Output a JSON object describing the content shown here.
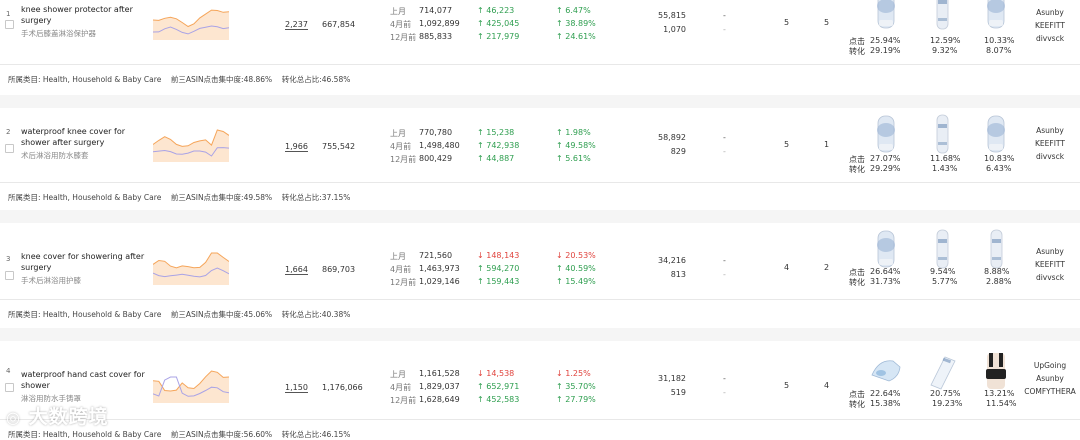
{
  "rows": [
    {
      "index": "1",
      "keyword": "knee shower protector after surgery",
      "keyword_cn": "手术后膝盖淋浴保护器",
      "rank": "2,237",
      "search_volume": "667,854",
      "periods": [
        {
          "label": "上月",
          "value": "714,077",
          "change": "46,223",
          "change_dir": "up",
          "pct": "6.47%",
          "pct_dir": "up"
        },
        {
          "label": "4月前",
          "value": "1,092,899",
          "change": "425,045",
          "change_dir": "up",
          "pct": "38.89%",
          "pct_dir": "up"
        },
        {
          "label": "12月前",
          "value": "885,833",
          "change": "217,979",
          "change_dir": "up",
          "pct": "24.61%",
          "pct_dir": "up"
        }
      ],
      "metric_a": "55,815",
      "metric_b": "1,070",
      "dash_a": "-",
      "dash_b": "-",
      "num_a": "5",
      "num_b": "5",
      "click_label": "点击",
      "conv_label": "转化",
      "products": [
        {
          "icon": "knee-cover-product-icon",
          "click": "25.94%",
          "conv": "29.19%"
        },
        {
          "icon": "leg-cover-product-icon",
          "click": "12.59%",
          "conv": "9.32%"
        },
        {
          "icon": "knee-cover-product-icon",
          "click": "10.33%",
          "conv": "8.07%"
        }
      ],
      "brands": [
        "Asunby",
        "KEEFITT",
        "divvsck"
      ],
      "summary": "所属类目: Health, Household & Baby Care    前三ASIN点击集中度:48.86%    转化总占比:46.58%"
    },
    {
      "index": "2",
      "keyword": "waterproof knee cover for shower after surgery",
      "keyword_cn": "术后淋浴用防水膝套",
      "rank": "1,966",
      "search_volume": "755,542",
      "periods": [
        {
          "label": "上月",
          "value": "770,780",
          "change": "15,238",
          "change_dir": "up",
          "pct": "1.98%",
          "pct_dir": "up"
        },
        {
          "label": "4月前",
          "value": "1,498,480",
          "change": "742,938",
          "change_dir": "up",
          "pct": "49.58%",
          "pct_dir": "up"
        },
        {
          "label": "12月前",
          "value": "800,429",
          "change": "44,887",
          "change_dir": "up",
          "pct": "5.61%",
          "pct_dir": "up"
        }
      ],
      "metric_a": "58,892",
      "metric_b": "829",
      "dash_a": "-",
      "dash_b": "-",
      "num_a": "5",
      "num_b": "1",
      "click_label": "点击",
      "conv_label": "转化",
      "products": [
        {
          "icon": "knee-cover-product-icon",
          "click": "27.07%",
          "conv": "29.29%"
        },
        {
          "icon": "leg-cover-product-icon",
          "click": "11.68%",
          "conv": "1.43%"
        },
        {
          "icon": "knee-cover-product-icon",
          "click": "10.83%",
          "conv": "6.43%"
        }
      ],
      "brands": [
        "Asunby",
        "KEEFITT",
        "divvsck"
      ],
      "summary": "所属类目: Health, Household & Baby Care    前三ASIN点击集中度:49.58%    转化总占比:37.15%"
    },
    {
      "index": "3",
      "keyword": "knee cover for showering after surgery",
      "keyword_cn": "手术后淋浴用护膝",
      "rank": "1,664",
      "search_volume": "869,703",
      "periods": [
        {
          "label": "上月",
          "value": "721,560",
          "change": "148,143",
          "change_dir": "down",
          "pct": "20.53%",
          "pct_dir": "down"
        },
        {
          "label": "4月前",
          "value": "1,463,973",
          "change": "594,270",
          "change_dir": "up",
          "pct": "40.59%",
          "pct_dir": "up"
        },
        {
          "label": "12月前",
          "value": "1,029,146",
          "change": "159,443",
          "change_dir": "up",
          "pct": "15.49%",
          "pct_dir": "up"
        }
      ],
      "metric_a": "34,216",
      "metric_b": "813",
      "dash_a": "-",
      "dash_b": "-",
      "num_a": "4",
      "num_b": "2",
      "click_label": "点击",
      "conv_label": "转化",
      "products": [
        {
          "icon": "knee-cover-product-icon",
          "click": "26.64%",
          "conv": "31.73%"
        },
        {
          "icon": "leg-cover-product-icon",
          "click": "9.54%",
          "conv": "5.77%"
        },
        {
          "icon": "leg-cover-product-icon",
          "click": "8.88%",
          "conv": "2.88%"
        }
      ],
      "brands": [
        "Asunby",
        "KEEFITT",
        "divvsck"
      ],
      "summary": "所属类目: Health, Household & Baby Care    前三ASIN点击集中度:45.06%    转化总占比:40.38%"
    },
    {
      "index": "4",
      "keyword": "waterproof hand cast cover for shower",
      "keyword_cn": "淋浴用防水手铸罩",
      "rank": "1,150",
      "search_volume": "1,176,066",
      "periods": [
        {
          "label": "上月",
          "value": "1,161,528",
          "change": "14,538",
          "change_dir": "down",
          "pct": "1.25%",
          "pct_dir": "down"
        },
        {
          "label": "4月前",
          "value": "1,829,037",
          "change": "652,971",
          "change_dir": "up",
          "pct": "35.70%",
          "pct_dir": "up"
        },
        {
          "label": "12月前",
          "value": "1,628,649",
          "change": "452,583",
          "change_dir": "up",
          "pct": "27.79%",
          "pct_dir": "up"
        }
      ],
      "metric_a": "31,182",
      "metric_b": "519",
      "dash_a": "-",
      "dash_b": "-",
      "num_a": "5",
      "num_b": "4",
      "click_label": "点击",
      "conv_label": "转化",
      "products": [
        {
          "icon": "hand-cast-cover-product-icon",
          "click": "22.64%",
          "conv": "15.38%"
        },
        {
          "icon": "arm-cast-cover-product-icon",
          "click": "20.75%",
          "conv": "19.23%"
        },
        {
          "icon": "back-brace-product-icon",
          "click": "13.21%",
          "conv": "11.54%"
        }
      ],
      "brands": [
        "UpGoing",
        "Asunby",
        "COMFYTHERA"
      ],
      "summary": "所属类目: Health, Household & Baby Care    前三ASIN点击集中度:56.60%    转化总占比:46.15%"
    }
  ],
  "watermark": "大数跨境",
  "colors": {
    "up": "#2e9e4f",
    "down": "#e0443e",
    "trend_area": "#fde2c8",
    "trend_line_orange": "#f5a55a",
    "trend_line_purple": "#a9a3e6"
  }
}
